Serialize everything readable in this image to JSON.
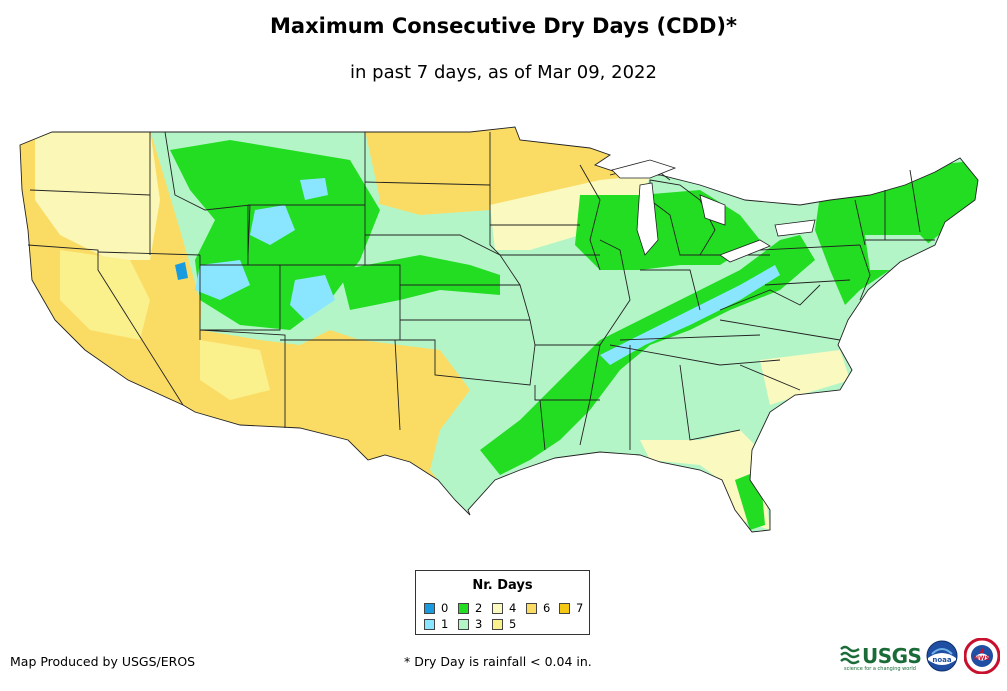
{
  "header": {
    "title": "Maximum Consecutive Dry Days (CDD)*",
    "subtitle": "in past 7 days, as of Mar 09, 2022"
  },
  "legend": {
    "title": "Nr. Days",
    "items": [
      {
        "label": "0",
        "color": "#1a9be0"
      },
      {
        "label": "1",
        "color": "#8ae6ff"
      },
      {
        "label": "2",
        "color": "#22dd22"
      },
      {
        "label": "3",
        "color": "#b4f5c8"
      },
      {
        "label": "4",
        "color": "#fafac0"
      },
      {
        "label": "5",
        "color": "#faf08c"
      },
      {
        "label": "6",
        "color": "#fadc64"
      },
      {
        "label": "7",
        "color": "#f5c814"
      }
    ]
  },
  "footer": {
    "producer": "Map Produced by USGS/EROS",
    "footnote": "* Dry Day is rainfall < 0.04 in."
  },
  "logos": {
    "usgs": "USGS",
    "usgs_tagline": "science for a changing world",
    "noaa": "noaa",
    "nws": "NWS"
  }
}
